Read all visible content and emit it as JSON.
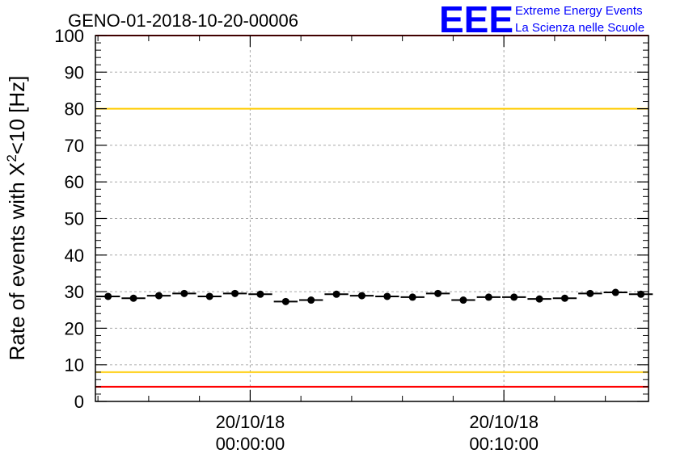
{
  "chart_data": {
    "type": "scatter",
    "title": "GENO-01-2018-10-20-00006",
    "ylabel_prefix": "Rate of events with ",
    "ylabel_chi": "X",
    "ylabel_sup": "2",
    "ylabel_suffix": "<10 [Hz]",
    "ylim": [
      0,
      100
    ],
    "y_ticks": [
      "0",
      "10",
      "20",
      "30",
      "40",
      "50",
      "60",
      "70",
      "80",
      "90",
      "100"
    ],
    "x_ticks": [
      {
        "date": "20/10/18",
        "time": "00:00:00",
        "minute": 0
      },
      {
        "date": "20/10/18",
        "time": "00:10:00",
        "minute": 10
      }
    ],
    "x_range_minutes": [
      -6.1,
      15.7
    ],
    "bin_width_minutes": 1.0,
    "x_start_minutes": -6.1,
    "values": [
      28.7,
      28.2,
      28.9,
      29.5,
      28.7,
      29.5,
      29.3,
      27.3,
      27.7,
      29.3,
      28.9,
      28.7,
      28.5,
      29.5,
      27.7,
      28.5,
      28.5,
      28.0,
      28.2,
      29.5,
      29.8,
      29.3
    ],
    "grid": true,
    "reference_lines": [
      {
        "value": 100,
        "color": "#ff0000"
      },
      {
        "value": 80,
        "color": "#ffcc00"
      },
      {
        "value": 8,
        "color": "#ffcc00"
      },
      {
        "value": 4,
        "color": "#ff0000"
      }
    ],
    "marker_color": "#000000"
  },
  "logo": {
    "letters": "EEE",
    "line1": "Extreme Energy Events",
    "line2": "La Scienza nelle Scuole",
    "color": "#0000ff"
  }
}
